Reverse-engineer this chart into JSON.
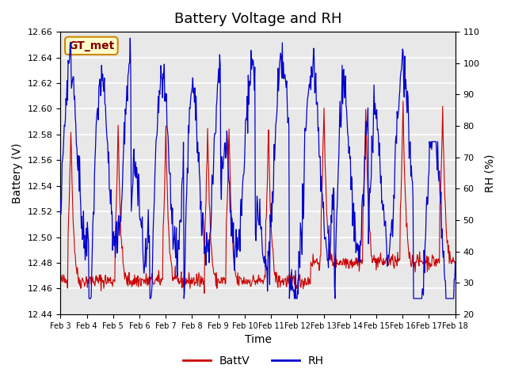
{
  "title": "Battery Voltage and RH",
  "xlabel": "Time",
  "ylabel_left": "Battery (V)",
  "ylabel_right": "RH (%)",
  "annotation": "GT_met",
  "ylim_left": [
    12.44,
    12.66
  ],
  "ylim_right": [
    20,
    110
  ],
  "yticks_left": [
    12.44,
    12.46,
    12.48,
    12.5,
    12.52,
    12.54,
    12.56,
    12.58,
    12.6,
    12.62,
    12.64,
    12.66
  ],
  "yticks_right": [
    20,
    30,
    40,
    50,
    60,
    70,
    80,
    90,
    100,
    110
  ],
  "x_tick_labels": [
    "Feb 3",
    "Feb 4",
    "Feb 5",
    "Feb 6",
    "Feb 7",
    "Feb 8",
    "Feb 9",
    "Feb 10",
    "Feb 11",
    "Feb 12",
    "Feb 13",
    "Feb 14",
    "Feb 15",
    "Feb 16",
    "Feb 17",
    "Feb 18"
  ],
  "color_batt": "#cc0000",
  "color_rh": "#0000cc",
  "legend_labels": [
    "BattV",
    "RH"
  ],
  "plot_bg_color": "#e8e8e8",
  "annotation_bg": "#ffffcc",
  "annotation_border": "#cc8800",
  "annotation_text_color": "#800000",
  "grid_color": "#ffffff",
  "title_fontsize": 13
}
